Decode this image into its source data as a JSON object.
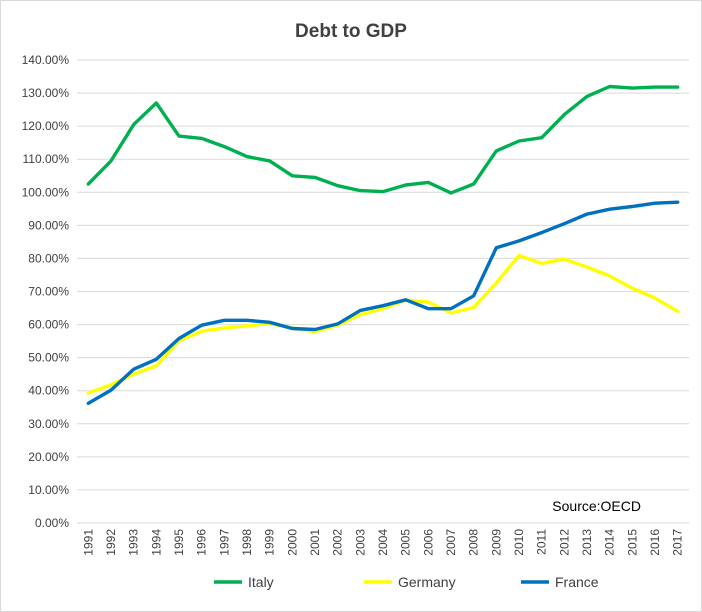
{
  "chart_data": {
    "type": "line",
    "title": "Debt to GDP",
    "source": "Source:OECD",
    "xlabel": "",
    "ylabel": "",
    "ylim": [
      0,
      140
    ],
    "y_ticks": [
      "0.00%",
      "10.00%",
      "20.00%",
      "30.00%",
      "40.00%",
      "50.00%",
      "60.00%",
      "70.00%",
      "80.00%",
      "90.00%",
      "100.00%",
      "110.00%",
      "120.00%",
      "130.00%",
      "140.00%"
    ],
    "grid": true,
    "legend_position": "bottom",
    "categories": [
      "1991",
      "1992",
      "1993",
      "1994",
      "1995",
      "1996",
      "1997",
      "1998",
      "1999",
      "2000",
      "2001",
      "2002",
      "2003",
      "2004",
      "2005",
      "2006",
      "2007",
      "2008",
      "2009",
      "2010",
      "2011",
      "2012",
      "2013",
      "2014",
      "2015",
      "2016",
      "2017"
    ],
    "series": [
      {
        "name": "Italy",
        "color": "#00b050",
        "values": [
          102.5,
          109.5,
          120.5,
          127,
          117,
          116.3,
          113.8,
          110.8,
          109.5,
          105,
          104.5,
          102,
          100.5,
          100.2,
          102.2,
          103,
          99.8,
          102.5,
          112.5,
          115.5,
          116.5,
          123.5,
          129,
          132,
          131.5,
          131.8,
          131.8
        ]
      },
      {
        "name": "Germany",
        "color": "#ffff00",
        "values": [
          39.3,
          41.8,
          45,
          47.5,
          55,
          58,
          59,
          59.6,
          60.3,
          59,
          57.8,
          59.8,
          63,
          64.8,
          67.4,
          66.8,
          63.5,
          65.2,
          72.6,
          80.9,
          78.5,
          79.8,
          77.4,
          74.7,
          71,
          68,
          64
        ]
      },
      {
        "name": "France",
        "color": "#0070c0",
        "values": [
          36.2,
          40.2,
          46.5,
          49.5,
          55.8,
          59.8,
          61.3,
          61.3,
          60.7,
          58.8,
          58.5,
          60.2,
          64.3,
          65.7,
          67.5,
          64.8,
          64.8,
          68.7,
          83.2,
          85.3,
          87.8,
          90.5,
          93.4,
          94.9,
          95.7,
          96.7,
          97
        ]
      }
    ]
  }
}
